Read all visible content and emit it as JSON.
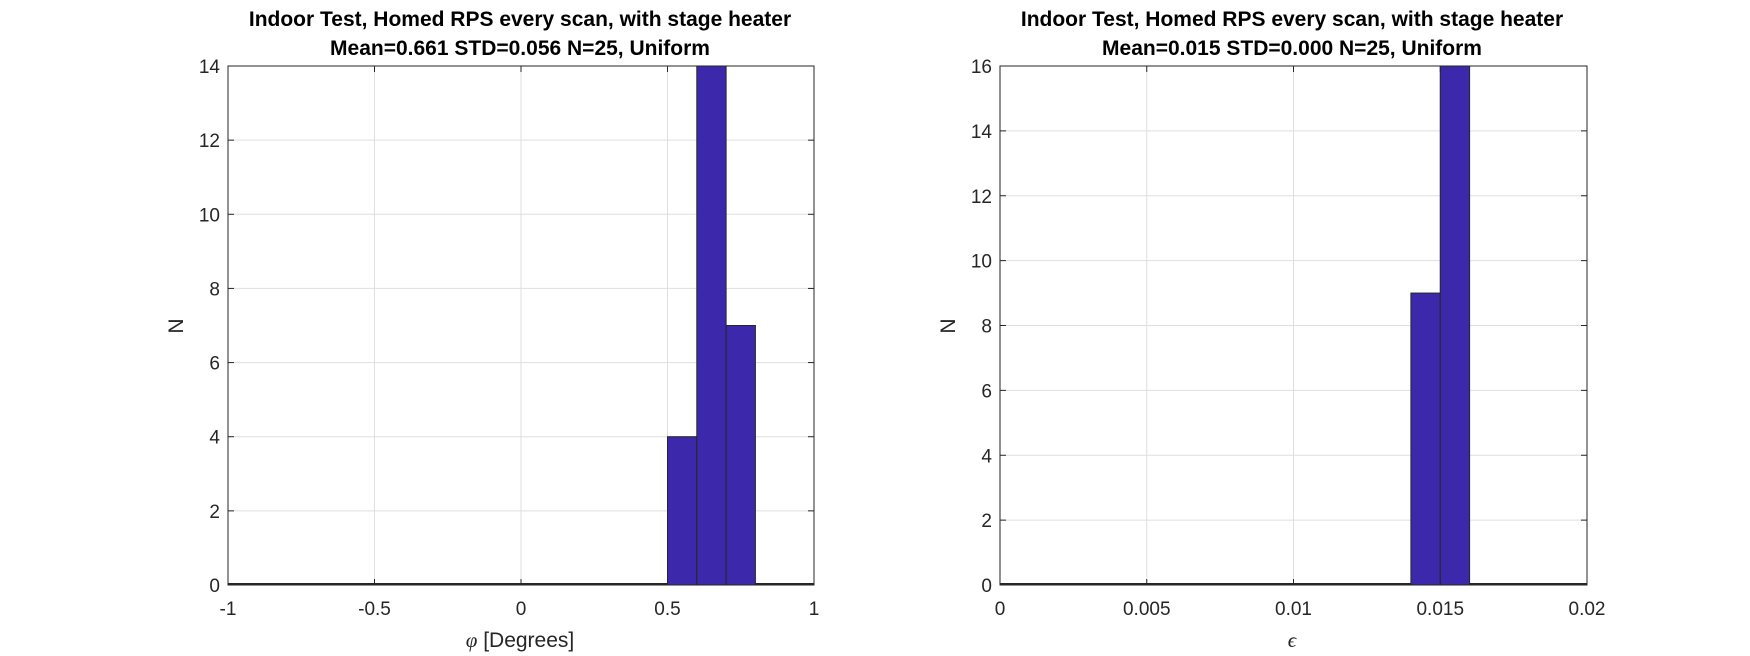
{
  "chart_data": [
    {
      "type": "bar",
      "title": "Indoor Test, Homed RPS every scan, with stage heater",
      "subtitle": "Mean=0.661 STD=0.056 N=25, Uniform",
      "xlabel_symbol": "φ",
      "xlabel": "[Degrees]",
      "ylabel": "N",
      "xlim": [
        -1,
        1
      ],
      "ylim": [
        0,
        14
      ],
      "xticks": [
        -1,
        -0.5,
        0,
        0.5,
        1
      ],
      "xtick_labels": [
        "-1",
        "-0.5",
        "0",
        "0.5",
        "1"
      ],
      "yticks": [
        0,
        2,
        4,
        6,
        8,
        10,
        12,
        14
      ],
      "ytick_labels": [
        "0",
        "2",
        "4",
        "6",
        "8",
        "10",
        "12",
        "14"
      ],
      "bins": [
        [
          0.5,
          0.6
        ],
        [
          0.6,
          0.7
        ],
        [
          0.7,
          0.8
        ]
      ],
      "values": [
        4,
        14,
        7
      ],
      "grid": true,
      "bar_color": "#3c28ab"
    },
    {
      "type": "bar",
      "title": "Indoor Test, Homed RPS every scan, with stage heater",
      "subtitle": "Mean=0.015 STD=0.000 N=25, Uniform",
      "xlabel_symbol": "ϵ",
      "xlabel": "",
      "ylabel": "N",
      "xlim": [
        0,
        0.02
      ],
      "ylim": [
        0,
        16
      ],
      "xticks": [
        0,
        0.005,
        0.01,
        0.015,
        0.02
      ],
      "xtick_labels": [
        "0",
        "0.005",
        "0.01",
        "0.015",
        "0.02"
      ],
      "yticks": [
        0,
        2,
        4,
        6,
        8,
        10,
        12,
        14,
        16
      ],
      "ytick_labels": [
        "0",
        "2",
        "4",
        "6",
        "8",
        "10",
        "12",
        "14",
        "16"
      ],
      "bins": [
        [
          0.014,
          0.015
        ],
        [
          0.015,
          0.016
        ]
      ],
      "values": [
        9,
        16
      ],
      "grid": true,
      "bar_color": "#3c28ab"
    }
  ]
}
